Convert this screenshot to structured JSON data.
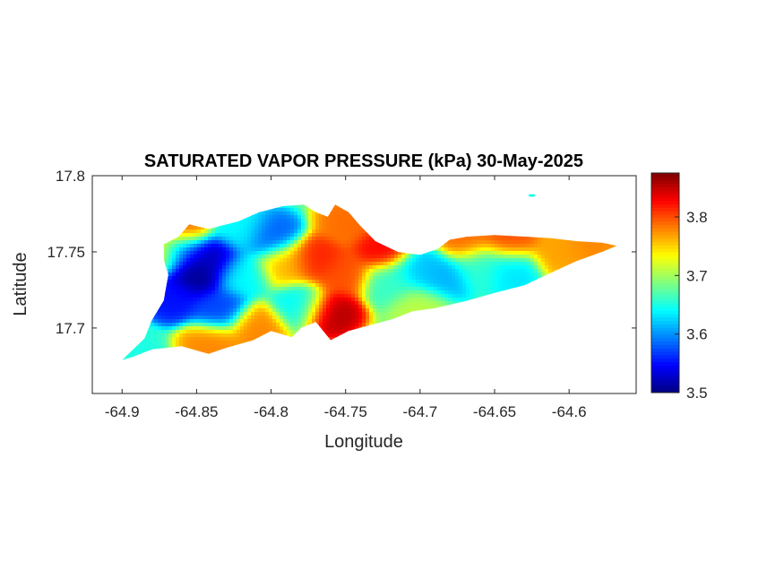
{
  "chart_data": {
    "type": "heatmap",
    "title": "SATURATED VAPOR PRESSURE (kPa) 30-May-2025",
    "xlabel": "Longitude",
    "ylabel": "Latitude",
    "xlim": [
      -64.92,
      -64.555
    ],
    "ylim": [
      17.657,
      17.8
    ],
    "x_ticks": [
      -64.9,
      -64.85,
      -64.8,
      -64.75,
      -64.7,
      -64.65,
      -64.6
    ],
    "x_tick_labels": [
      "-64.9",
      "-64.85",
      "-64.8",
      "-64.75",
      "-64.7",
      "-64.65",
      "-64.6"
    ],
    "y_ticks": [
      17.7,
      17.75,
      17.8
    ],
    "y_tick_labels": [
      "17.7",
      "17.75",
      "17.8"
    ],
    "colorbar": {
      "colormap": "jet",
      "range": [
        3.5,
        3.875
      ],
      "ticks": [
        3.5,
        3.6,
        3.7,
        3.8
      ],
      "tick_labels": [
        "3.5",
        "3.6",
        "3.7",
        "3.8"
      ]
    },
    "island_outline": [
      [
        -64.9,
        17.679
      ],
      [
        -64.885,
        17.693
      ],
      [
        -64.88,
        17.705
      ],
      [
        -64.872,
        17.718
      ],
      [
        -64.869,
        17.735
      ],
      [
        -64.872,
        17.745
      ],
      [
        -64.872,
        17.755
      ],
      [
        -64.862,
        17.76
      ],
      [
        -64.855,
        17.768
      ],
      [
        -64.842,
        17.765
      ],
      [
        -64.822,
        17.77
      ],
      [
        -64.808,
        17.776
      ],
      [
        -64.792,
        17.78
      ],
      [
        -64.778,
        17.781
      ],
      [
        -64.77,
        17.776
      ],
      [
        -64.762,
        17.773
      ],
      [
        -64.757,
        17.781
      ],
      [
        -64.748,
        17.776
      ],
      [
        -64.74,
        17.767
      ],
      [
        -64.73,
        17.757
      ],
      [
        -64.715,
        17.75
      ],
      [
        -64.7,
        17.748
      ],
      [
        -64.688,
        17.752
      ],
      [
        -64.68,
        17.758
      ],
      [
        -64.668,
        17.76
      ],
      [
        -64.65,
        17.761
      ],
      [
        -64.63,
        17.76
      ],
      [
        -64.612,
        17.759
      ],
      [
        -64.595,
        17.757
      ],
      [
        -64.578,
        17.756
      ],
      [
        -64.568,
        17.754
      ],
      [
        -64.578,
        17.75
      ],
      [
        -64.595,
        17.744
      ],
      [
        -64.615,
        17.735
      ],
      [
        -64.63,
        17.728
      ],
      [
        -64.65,
        17.723
      ],
      [
        -64.668,
        17.718
      ],
      [
        -64.69,
        17.713
      ],
      [
        -64.705,
        17.711
      ],
      [
        -64.718,
        17.706
      ],
      [
        -64.737,
        17.701
      ],
      [
        -64.748,
        17.698
      ],
      [
        -64.76,
        17.692
      ],
      [
        -64.77,
        17.704
      ],
      [
        -64.78,
        17.7
      ],
      [
        -64.786,
        17.694
      ],
      [
        -64.8,
        17.698
      ],
      [
        -64.812,
        17.692
      ],
      [
        -64.83,
        17.687
      ],
      [
        -64.842,
        17.683
      ],
      [
        -64.86,
        17.688
      ],
      [
        -64.88,
        17.686
      ],
      [
        -64.893,
        17.681
      ]
    ],
    "islet": {
      "lon": -64.625,
      "lat": 17.787,
      "value": 3.65
    },
    "field_background": 3.68,
    "field_anomalies": [
      {
        "lon": -64.85,
        "lat": 17.735,
        "value": 3.5
      },
      {
        "lon": -64.84,
        "lat": 17.745,
        "value": 3.52
      },
      {
        "lon": -64.865,
        "lat": 17.72,
        "value": 3.55
      },
      {
        "lon": -64.86,
        "lat": 17.75,
        "value": 3.56
      },
      {
        "lon": -64.835,
        "lat": 17.712,
        "value": 3.57
      },
      {
        "lon": -64.8,
        "lat": 17.76,
        "value": 3.58
      },
      {
        "lon": -64.82,
        "lat": 17.735,
        "value": 3.64
      },
      {
        "lon": -64.82,
        "lat": 17.765,
        "value": 3.64
      },
      {
        "lon": -64.78,
        "lat": 17.715,
        "value": 3.64
      },
      {
        "lon": -64.77,
        "lat": 17.745,
        "value": 3.82
      },
      {
        "lon": -64.76,
        "lat": 17.71,
        "value": 3.86
      },
      {
        "lon": -64.752,
        "lat": 17.735,
        "value": 3.8
      },
      {
        "lon": -64.748,
        "lat": 17.77,
        "value": 3.79
      },
      {
        "lon": -64.725,
        "lat": 17.752,
        "value": 3.83
      },
      {
        "lon": -64.81,
        "lat": 17.7,
        "value": 3.78
      },
      {
        "lon": -64.79,
        "lat": 17.742,
        "value": 3.76
      },
      {
        "lon": -64.86,
        "lat": 17.765,
        "value": 3.8
      },
      {
        "lon": -64.875,
        "lat": 17.75,
        "value": 3.76
      },
      {
        "lon": -64.84,
        "lat": 17.69,
        "value": 3.78
      },
      {
        "lon": -64.72,
        "lat": 17.73,
        "value": 3.66
      },
      {
        "lon": -64.7,
        "lat": 17.738,
        "value": 3.62
      },
      {
        "lon": -64.685,
        "lat": 17.733,
        "value": 3.61
      },
      {
        "lon": -64.66,
        "lat": 17.74,
        "value": 3.66
      },
      {
        "lon": -64.64,
        "lat": 17.738,
        "value": 3.63
      },
      {
        "lon": -64.67,
        "lat": 17.758,
        "value": 3.79
      },
      {
        "lon": -64.64,
        "lat": 17.758,
        "value": 3.8
      },
      {
        "lon": -64.605,
        "lat": 17.75,
        "value": 3.77
      },
      {
        "lon": -64.585,
        "lat": 17.754,
        "value": 3.78
      },
      {
        "lon": -64.7,
        "lat": 17.715,
        "value": 3.71
      },
      {
        "lon": -64.895,
        "lat": 17.685,
        "value": 3.65
      }
    ]
  }
}
